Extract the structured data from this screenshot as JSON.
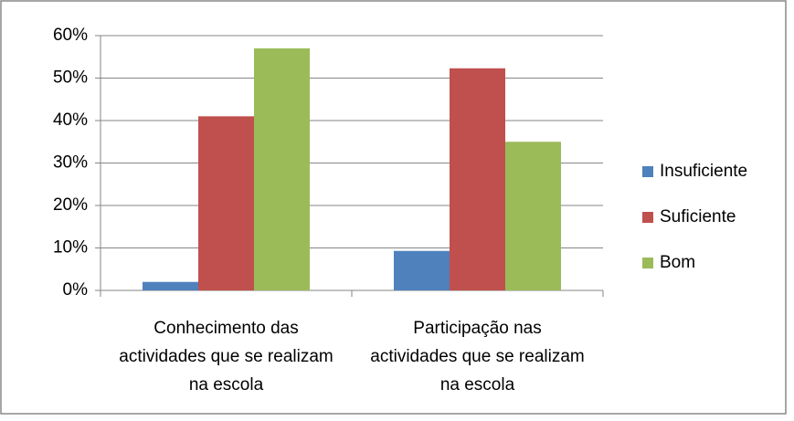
{
  "chart_data": {
    "type": "bar",
    "categories": [
      "Conhecimento das actividades que se realizam na escola",
      "Participação nas actividades que se realizam na escola"
    ],
    "series": [
      {
        "name": "Insuficiente",
        "color": "#4f81bd",
        "values": [
          2,
          9.3
        ]
      },
      {
        "name": "Suficiente",
        "color": "#c0504d",
        "values": [
          41,
          52.3
        ]
      },
      {
        "name": "Bom",
        "color": "#9bbb59",
        "values": [
          57,
          35
        ]
      }
    ],
    "ylim": [
      0,
      60
    ],
    "yticks": [
      {
        "value": 0,
        "label": "0%"
      },
      {
        "value": 10,
        "label": "10%"
      },
      {
        "value": 20,
        "label": "20%"
      },
      {
        "value": 30,
        "label": "30%"
      },
      {
        "value": 40,
        "label": "40%"
      },
      {
        "value": 50,
        "label": "50%"
      },
      {
        "value": 60,
        "label": "60%"
      }
    ],
    "grid": true,
    "legend": "right"
  }
}
